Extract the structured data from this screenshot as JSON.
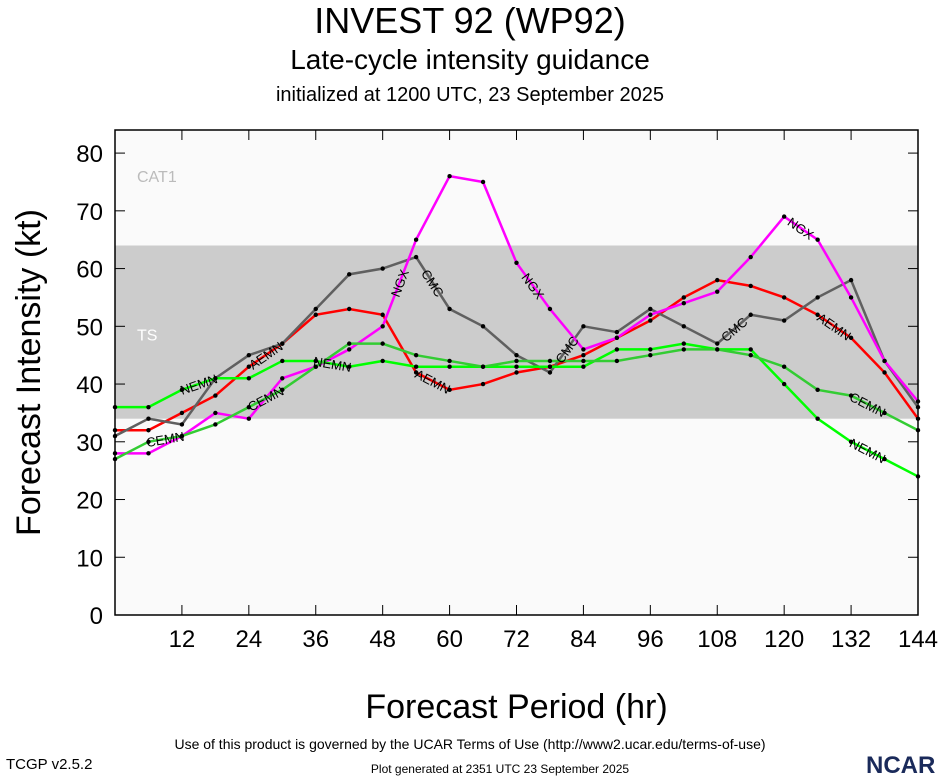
{
  "title": "INVEST 92 (WP92)",
  "subtitle": "Late-cycle intensity guidance",
  "initialized": "initialized at 1200 UTC, 23 September 2025",
  "footer_terms": "Use of this product is governed by the UCAR Terms of Use (http://www2.ucar.edu/terms-of-use)",
  "footer_generated": "Plot generated at 2351 UTC   23 September 2025",
  "version": "TCGP v2.5.2",
  "logo": "NCAR",
  "chart_data": {
    "type": "line",
    "xlabel": "Forecast Period (hr)",
    "ylabel": "Forecast Intensity (kt)",
    "xlim": [
      0,
      144
    ],
    "ylim": [
      0,
      84
    ],
    "xticks": [
      12,
      24,
      36,
      48,
      60,
      72,
      84,
      96,
      108,
      120,
      132,
      144
    ],
    "yticks": [
      0,
      10,
      20,
      30,
      40,
      50,
      60,
      70,
      80
    ],
    "bands": [
      {
        "name": "TS",
        "from": 34,
        "to": 64,
        "color": "#cccccc"
      },
      {
        "name": "CAT1",
        "from": 64,
        "to": 84,
        "color": "#fafafa"
      }
    ],
    "below_band_color": "#fafafa",
    "x": [
      0,
      6,
      12,
      18,
      24,
      30,
      36,
      42,
      48,
      54,
      60,
      66,
      72,
      78,
      84,
      90,
      96,
      102,
      108,
      114,
      120,
      126,
      132,
      138,
      144
    ],
    "series": [
      {
        "name": "AEMN",
        "color": "#ff0000",
        "values": [
          32,
          32,
          35,
          38,
          43,
          47,
          52,
          53,
          52,
          42,
          39,
          40,
          42,
          43,
          45,
          48,
          51,
          55,
          58,
          57,
          55,
          52,
          48,
          42,
          34
        ]
      },
      {
        "name": "CMC",
        "color": "#606060",
        "values": [
          31,
          34,
          33,
          41,
          45,
          47,
          53,
          59,
          60,
          62,
          53,
          50,
          45,
          42,
          50,
          49,
          53,
          50,
          47,
          52,
          51,
          55,
          58,
          44,
          36
        ]
      },
      {
        "name": "NGX",
        "color": "#ff00ff",
        "values": [
          28,
          28,
          31,
          35,
          34,
          41,
          43,
          46,
          50,
          65,
          76,
          75,
          61,
          53,
          46,
          48,
          52,
          54,
          56,
          62,
          69,
          65,
          55,
          44,
          37
        ]
      },
      {
        "name": "NEMN",
        "color": "#00ff00",
        "values": [
          36,
          36,
          39,
          41,
          41,
          44,
          44,
          43,
          44,
          43,
          43,
          43,
          43,
          43,
          43,
          46,
          46,
          47,
          46,
          46,
          40,
          34,
          30,
          27,
          24
        ]
      },
      {
        "name": "CEMN",
        "color": "#33cc33",
        "values": [
          27,
          30,
          31,
          33,
          36,
          39,
          43,
          47,
          47,
          45,
          44,
          43,
          44,
          44,
          44,
          44,
          45,
          46,
          46,
          45,
          43,
          39,
          38,
          35,
          32
        ]
      }
    ]
  }
}
